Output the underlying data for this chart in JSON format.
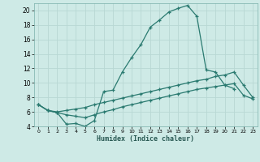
{
  "xlabel": "Humidex (Indice chaleur)",
  "bg_color": "#ceeae6",
  "grid_color": "#b8d8d4",
  "line_color": "#2a7a70",
  "xlim": [
    -0.5,
    23.5
  ],
  "ylim": [
    4,
    21
  ],
  "xticks": [
    0,
    1,
    2,
    3,
    4,
    5,
    6,
    7,
    8,
    9,
    10,
    11,
    12,
    13,
    14,
    15,
    16,
    17,
    18,
    19,
    20,
    21,
    22,
    23
  ],
  "yticks": [
    4,
    6,
    8,
    10,
    12,
    14,
    16,
    18,
    20
  ],
  "line1_x": [
    0,
    1,
    2,
    3,
    4,
    5,
    6,
    7,
    8,
    9,
    10,
    11,
    12,
    13,
    14,
    15,
    16,
    17,
    18,
    19,
    20,
    21
  ],
  "line1_y": [
    7.0,
    6.2,
    5.9,
    4.3,
    4.4,
    4.0,
    4.8,
    8.8,
    9.0,
    11.5,
    13.5,
    15.3,
    17.7,
    18.7,
    19.8,
    20.3,
    20.7,
    19.2,
    11.8,
    11.5,
    9.7,
    9.2
  ],
  "line2_x": [
    0,
    1,
    2,
    3,
    4,
    5,
    6,
    7,
    8,
    9,
    10,
    11,
    12,
    13,
    14,
    15,
    16,
    17,
    18,
    19,
    20,
    21,
    22,
    23
  ],
  "line2_y": [
    7.0,
    6.2,
    6.0,
    6.2,
    6.4,
    6.6,
    7.0,
    7.3,
    7.6,
    7.9,
    8.2,
    8.5,
    8.8,
    9.1,
    9.4,
    9.7,
    10.0,
    10.3,
    10.5,
    10.9,
    11.1,
    11.5,
    9.7,
    8.0
  ],
  "line3_x": [
    0,
    1,
    2,
    3,
    4,
    5,
    6,
    7,
    8,
    9,
    10,
    11,
    12,
    13,
    14,
    15,
    16,
    17,
    18,
    19,
    20,
    21,
    22,
    23
  ],
  "line3_y": [
    7.0,
    6.2,
    5.9,
    5.6,
    5.4,
    5.2,
    5.6,
    6.0,
    6.3,
    6.7,
    7.0,
    7.3,
    7.6,
    7.9,
    8.2,
    8.5,
    8.8,
    9.1,
    9.3,
    9.5,
    9.7,
    9.9,
    8.3,
    7.8
  ]
}
